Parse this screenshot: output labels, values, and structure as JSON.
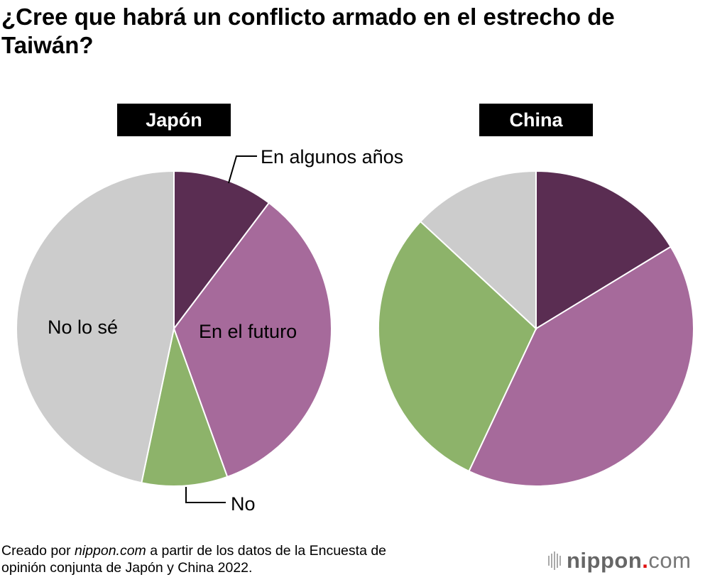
{
  "title": "¿Cree que habrá un conflicto armado en el estrecho de Taiwán?",
  "chart_data": [
    {
      "type": "pie",
      "title": "Japón",
      "categories": [
        "En algunos años",
        "En el futuro",
        "No",
        "No lo sé"
      ],
      "values": [
        10.3,
        34.2,
        8.8,
        46.7
      ],
      "unit": "%",
      "colors": [
        "#5a2d52",
        "#a66a9b",
        "#8db36a",
        "#cccccc"
      ],
      "labels_shown": [
        "En algunos años",
        "En el futuro",
        "No",
        "No lo sé"
      ]
    },
    {
      "type": "pie",
      "title": "China",
      "categories": [
        "En algunos años",
        "En el futuro",
        "No",
        "No lo sé"
      ],
      "values": [
        16.3,
        40.7,
        29.9,
        13.1
      ],
      "unit": "%",
      "colors": [
        "#5a2d52",
        "#a66a9b",
        "#8db36a",
        "#cccccc"
      ]
    }
  ],
  "footer": {
    "prefix": "Creado por ",
    "site": "nippon.com",
    "suffix": " a partir de los datos de la Encuesta de",
    "line2": "opinión conjunta de Japón y China 2022."
  },
  "logo": {
    "name": "nippon",
    "dot": ".",
    "tld": "com"
  }
}
